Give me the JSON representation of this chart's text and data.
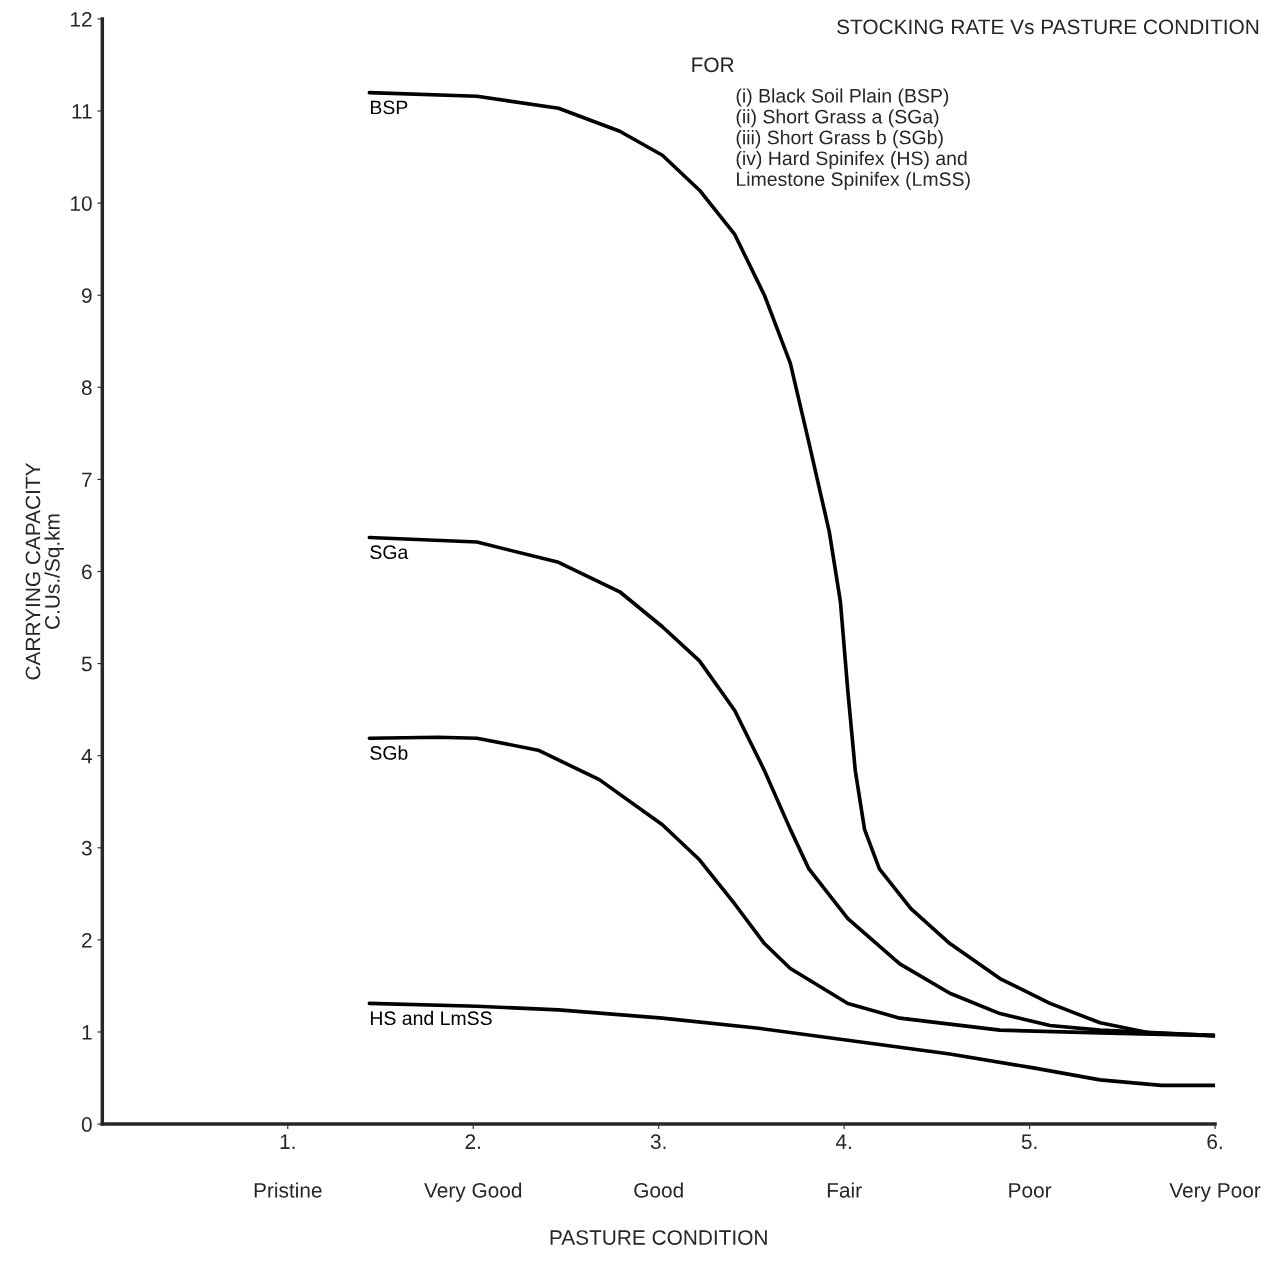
{
  "chart_data": {
    "type": "line",
    "title": "STOCKING RATE Vs PASTURE CONDITION",
    "subtitle": "FOR",
    "annotations": [
      "(i) Black Soil Plain (BSP)",
      "(ii) Short Grass a (SGa)",
      "(iii) Short Grass b (SGb)",
      "(iv) Hard Spinifex (HS) and",
      "Limestone Spinifex (LmSS)",
      "Pristine",
      "Very Good",
      "Good",
      "Fair",
      "Poor",
      "Very Poor"
    ],
    "xlabel": "PASTURE CONDITION",
    "ylabel": "CARRYING CAPACITY\nC.Us./Sq.km",
    "xlim": [
      0,
      6
    ],
    "ylim": [
      0,
      12
    ],
    "xticks": [
      {
        "value": 1,
        "label": "1."
      },
      {
        "value": 2,
        "label": "2."
      },
      {
        "value": 3,
        "label": "3."
      },
      {
        "value": 4,
        "label": "4."
      },
      {
        "value": 5,
        "label": "5."
      },
      {
        "value": 6,
        "label": "6."
      }
    ],
    "yticks": [
      0,
      1,
      2,
      3,
      4,
      5,
      6,
      7,
      8,
      9,
      10,
      11,
      12
    ],
    "grid": false,
    "legend": false,
    "marker": "none",
    "line_style": "solid",
    "series": [
      {
        "name": "BSP",
        "color": "#000000",
        "x": [
          1.44,
          2.02,
          2.46,
          2.79,
          3.02,
          3.22,
          3.41,
          3.57,
          3.71,
          3.81,
          3.92,
          3.98,
          4.02,
          4.06,
          4.11,
          4.19,
          4.36,
          4.57,
          4.84,
          5.11,
          5.38,
          5.65,
          6.0
        ],
        "values": [
          11.2,
          11.16,
          11.03,
          10.78,
          10.52,
          10.14,
          9.66,
          9.0,
          8.26,
          7.4,
          6.43,
          5.67,
          4.7,
          3.84,
          3.2,
          2.77,
          2.34,
          1.96,
          1.58,
          1.31,
          1.1,
          0.99,
          0.96
        ]
      },
      {
        "name": "SGa",
        "color": "#000000",
        "x": [
          1.44,
          2.02,
          2.46,
          2.79,
          3.02,
          3.22,
          3.41,
          3.57,
          3.71,
          3.81,
          4.02,
          4.3,
          4.57,
          4.84,
          5.11,
          5.38,
          6.0
        ],
        "values": [
          6.37,
          6.32,
          6.1,
          5.78,
          5.4,
          5.03,
          4.49,
          3.84,
          3.2,
          2.77,
          2.23,
          1.74,
          1.42,
          1.2,
          1.07,
          1.02,
          0.96
        ]
      },
      {
        "name": "SGb",
        "color": "#000000",
        "x": [
          1.44,
          1.81,
          2.02,
          2.35,
          2.68,
          3.02,
          3.22,
          3.41,
          3.57,
          3.71,
          4.02,
          4.3,
          4.84,
          5.38,
          6.0
        ],
        "values": [
          4.19,
          4.2,
          4.19,
          4.06,
          3.74,
          3.25,
          2.87,
          2.39,
          1.96,
          1.69,
          1.31,
          1.15,
          1.02,
          0.99,
          0.96
        ]
      },
      {
        "name": "HS and LmSS",
        "color": "#000000",
        "x": [
          1.44,
          2.02,
          2.46,
          3.02,
          3.54,
          4.02,
          4.57,
          5.02,
          5.38,
          5.71,
          6.0
        ],
        "values": [
          1.31,
          1.28,
          1.24,
          1.15,
          1.04,
          0.91,
          0.76,
          0.61,
          0.48,
          0.42,
          0.42
        ]
      }
    ]
  }
}
